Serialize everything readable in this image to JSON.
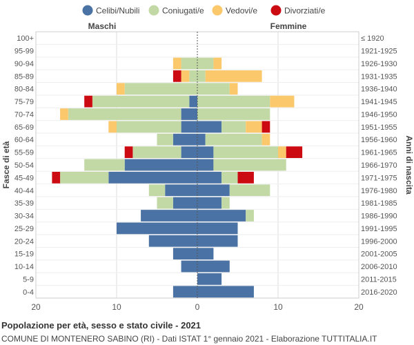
{
  "chart_data": {
    "type": "bar",
    "orientation": "horizontal",
    "stacked": true,
    "layout": "population-pyramid",
    "side_labels": {
      "left": "Maschi",
      "right": "Femmine"
    },
    "ylabel_left": "Fasce di età",
    "ylabel_right": "Anni di nascita",
    "xlim": [
      -20,
      20
    ],
    "xticks": [
      -20,
      -10,
      0,
      10,
      20
    ],
    "xtick_labels": [
      "20",
      "10",
      "0",
      "10",
      "20"
    ],
    "grid": true,
    "legend_position": "top",
    "age_groups": [
      "100+",
      "95-99",
      "90-94",
      "85-89",
      "80-84",
      "75-79",
      "70-74",
      "65-69",
      "60-64",
      "55-59",
      "50-54",
      "45-49",
      "40-44",
      "35-39",
      "30-34",
      "25-29",
      "20-24",
      "15-19",
      "10-14",
      "5-9",
      "0-4"
    ],
    "birth_years": [
      "≤ 1920",
      "1921-1925",
      "1926-1930",
      "1931-1935",
      "1936-1940",
      "1941-1945",
      "1946-1950",
      "1951-1955",
      "1956-1960",
      "1961-1965",
      "1966-1970",
      "1971-1975",
      "1976-1980",
      "1981-1985",
      "1986-1990",
      "1991-1995",
      "1996-2000",
      "2001-2005",
      "2006-2010",
      "2011-2015",
      "2016-2020"
    ],
    "series": [
      {
        "name": "Celibi/Nubili",
        "color": "#4a72a4",
        "male": [
          0,
          0,
          0,
          0,
          0,
          1,
          2,
          2,
          3,
          2,
          9,
          11,
          4,
          3,
          7,
          10,
          6,
          3,
          2,
          0,
          3
        ],
        "female": [
          0,
          0,
          0,
          0,
          0,
          0,
          0,
          3,
          1,
          2,
          2,
          3,
          4,
          3,
          6,
          5,
          5,
          2,
          4,
          3,
          7
        ]
      },
      {
        "name": "Coniugati/e",
        "color": "#c2d9a6",
        "male": [
          0,
          0,
          2,
          1,
          9,
          12,
          14,
          8,
          2,
          6,
          5,
          6,
          2,
          2,
          0,
          0,
          0,
          0,
          0,
          0,
          0
        ],
        "female": [
          0,
          0,
          2,
          1,
          4,
          9,
          9,
          3,
          7,
          8,
          9,
          2,
          5,
          1,
          1,
          0,
          0,
          0,
          0,
          0,
          0
        ]
      },
      {
        "name": "Vedovi/e",
        "color": "#fbc86b",
        "male": [
          0,
          0,
          1,
          1,
          1,
          0,
          1,
          1,
          0,
          0,
          0,
          0,
          0,
          0,
          0,
          0,
          0,
          0,
          0,
          0,
          0
        ],
        "female": [
          0,
          0,
          1,
          7,
          1,
          3,
          0,
          2,
          1,
          1,
          0,
          0,
          0,
          0,
          0,
          0,
          0,
          0,
          0,
          0,
          0
        ]
      },
      {
        "name": "Divorziati/e",
        "color": "#cc0a12",
        "male": [
          0,
          0,
          0,
          1,
          0,
          1,
          0,
          0,
          0,
          1,
          0,
          1,
          0,
          0,
          0,
          0,
          0,
          0,
          0,
          0,
          0
        ],
        "female": [
          0,
          0,
          0,
          0,
          0,
          0,
          0,
          1,
          0,
          2,
          0,
          2,
          0,
          0,
          0,
          0,
          0,
          0,
          0,
          0,
          0
        ]
      }
    ]
  },
  "footer": {
    "title": "Popolazione per età, sesso e stato civile - 2021",
    "subtitle": "COMUNE DI MONTENERO SABINO (RI) - Dati ISTAT 1° gennaio 2021 - Elaborazione TUTTITALIA.IT"
  }
}
